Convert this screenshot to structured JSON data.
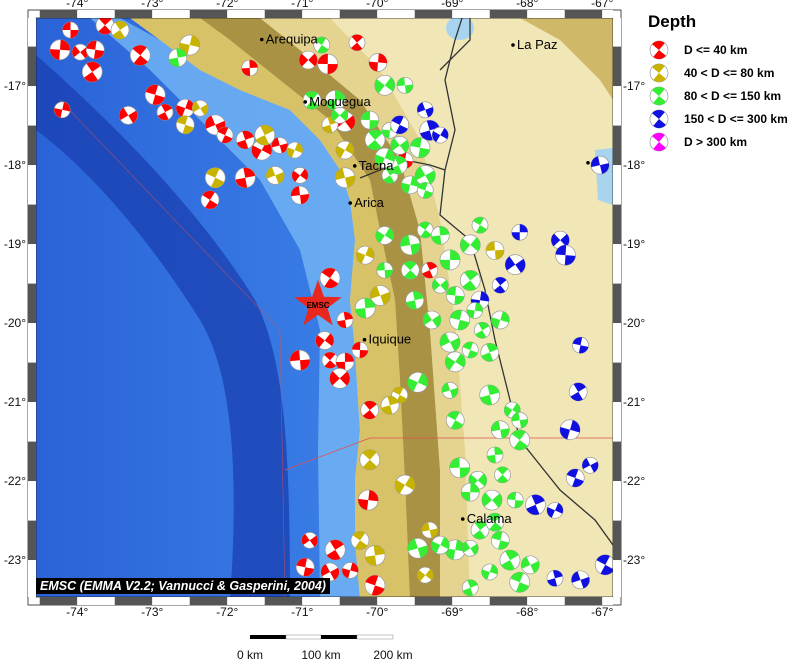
{
  "map": {
    "lon_ticks": [
      -74,
      -73,
      -72,
      -71,
      -70,
      -69,
      -68,
      -67
    ],
    "lat_ticks": [
      -17,
      -18,
      -19,
      -20,
      -21,
      -22,
      -23
    ],
    "lon_labels": [
      "-74°",
      "-73°",
      "-72°",
      "-71°",
      "-70°",
      "-69°",
      "-68°",
      "-67°"
    ],
    "lat_labels": [
      "-17°",
      "-18°",
      "-19°",
      "-20°",
      "-21°",
      "-22°",
      "-23°"
    ],
    "extent": {
      "lon": [
        -74.55,
        -66.85
      ],
      "lat": [
        -16.15,
        -23.45
      ]
    },
    "cities": [
      {
        "name": "Arequipa",
        "lon": -71.54,
        "lat": -16.41
      },
      {
        "name": "Moquegua",
        "lon": -70.96,
        "lat": -17.2
      },
      {
        "name": "Tacna",
        "lon": -70.3,
        "lat": -18.01
      },
      {
        "name": "Arica",
        "lon": -70.36,
        "lat": -18.48
      },
      {
        "name": "Iquique",
        "lon": -70.17,
        "lat": -20.21
      },
      {
        "name": "La Paz",
        "lon": -68.19,
        "lat": -16.48
      },
      {
        "name": "Calama",
        "lon": -68.86,
        "lat": -22.48
      }
    ],
    "unlabeled_city": {
      "lon": -67.19,
      "lat": -17.97
    },
    "epicenter": {
      "label": "EMSC",
      "lon": -70.79,
      "lat": -19.77,
      "color": "#e8281e"
    },
    "credit": "EMSC (EMMA V2.2; Vannucci & Gasperini, 2004)"
  },
  "scale_bar": {
    "labels": [
      "0 km",
      "100 km",
      "200 km"
    ]
  },
  "legend": {
    "title": "Depth",
    "items": [
      {
        "key": "d40",
        "label": "D <= 40 km",
        "color": "#ff0000"
      },
      {
        "key": "d80",
        "label": "40 < D <= 80 km",
        "color": "#c8b400"
      },
      {
        "key": "d150",
        "label": "80 < D <= 150 km",
        "color": "#33ee33"
      },
      {
        "key": "d300",
        "label": "150 < D <= 300 km",
        "color": "#1010e0"
      },
      {
        "key": "d300p",
        "label": "D > 300 km",
        "color": "#ff00ff"
      }
    ]
  },
  "events": [
    [
      -74.09,
      -16.29,
      "d40"
    ],
    [
      -73.63,
      -16.23,
      "d40"
    ],
    [
      -74.23,
      -16.54,
      "d40"
    ],
    [
      -73.96,
      -16.57,
      "d40"
    ],
    [
      -73.76,
      -16.54,
      "d40"
    ],
    [
      -73.8,
      -16.82,
      "d40"
    ],
    [
      -74.2,
      -17.3,
      "d40"
    ],
    [
      -73.32,
      -17.37,
      "d40"
    ],
    [
      -72.96,
      -17.11,
      "d40"
    ],
    [
      -72.83,
      -17.33,
      "d40"
    ],
    [
      -72.56,
      -17.28,
      "d40"
    ],
    [
      -72.16,
      -17.49,
      "d40"
    ],
    [
      -72.03,
      -17.62,
      "d40"
    ],
    [
      -71.76,
      -17.68,
      "d40"
    ],
    [
      -71.54,
      -17.81,
      "d40"
    ],
    [
      -71.3,
      -17.75,
      "d40"
    ],
    [
      -72.23,
      -18.44,
      "d40"
    ],
    [
      -71.76,
      -18.16,
      "d40"
    ],
    [
      -71.03,
      -18.13,
      "d40"
    ],
    [
      -71.03,
      -18.38,
      "d40"
    ],
    [
      -73.16,
      -16.61,
      "d40"
    ],
    [
      -71.7,
      -16.77,
      "d40"
    ],
    [
      -70.92,
      -16.67,
      "d40"
    ],
    [
      -70.66,
      -16.72,
      "d40"
    ],
    [
      -70.27,
      -16.45,
      "d40"
    ],
    [
      -69.99,
      -16.7,
      "d40"
    ],
    [
      -70.43,
      -17.45,
      "d40"
    ],
    [
      -69.63,
      -17.94,
      "d40"
    ],
    [
      -73.43,
      -16.29,
      "d80"
    ],
    [
      -72.5,
      -16.48,
      "d80"
    ],
    [
      -72.36,
      -17.28,
      "d80"
    ],
    [
      -72.56,
      -17.49,
      "d80"
    ],
    [
      -71.5,
      -17.62,
      "d80"
    ],
    [
      -71.1,
      -17.81,
      "d80"
    ],
    [
      -71.36,
      -18.13,
      "d80"
    ],
    [
      -72.16,
      -18.16,
      "d80"
    ],
    [
      -70.63,
      -17.49,
      "d80"
    ],
    [
      -70.43,
      -17.81,
      "d80"
    ],
    [
      -70.43,
      -18.16,
      "d80"
    ],
    [
      -70.74,
      -16.48,
      "d150"
    ],
    [
      -72.66,
      -16.64,
      "d150"
    ],
    [
      -69.9,
      -16.99,
      "d150"
    ],
    [
      -69.63,
      -16.99,
      "d150"
    ],
    [
      -70.87,
      -17.18,
      "d150"
    ],
    [
      -70.56,
      -17.18,
      "d150"
    ],
    [
      -70.5,
      -17.37,
      "d150"
    ],
    [
      -70.1,
      -17.43,
      "d150"
    ],
    [
      -70.03,
      -17.68,
      "d150"
    ],
    [
      -69.83,
      -17.56,
      "d150"
    ],
    [
      -69.7,
      -17.75,
      "d150"
    ],
    [
      -69.43,
      -17.78,
      "d150"
    ],
    [
      -69.83,
      -18.13,
      "d150"
    ],
    [
      -69.56,
      -18.25,
      "d150"
    ],
    [
      -69.36,
      -18.13,
      "d150"
    ],
    [
      -69.36,
      -18.32,
      "d150"
    ],
    [
      -69.72,
      -18.0,
      "d150"
    ],
    [
      -69.9,
      -17.91,
      "d150"
    ],
    [
      -69.36,
      -17.3,
      "d300"
    ],
    [
      -69.7,
      -17.49,
      "d300"
    ],
    [
      -69.3,
      -17.56,
      "d300"
    ],
    [
      -69.16,
      -17.62,
      "d300"
    ],
    [
      -67.03,
      -18.0,
      "d300"
    ],
    [
      -70.63,
      -19.43,
      "d40"
    ],
    [
      -70.43,
      -19.96,
      "d40"
    ],
    [
      -70.7,
      -20.22,
      "d40"
    ],
    [
      -71.03,
      -20.47,
      "d40"
    ],
    [
      -70.63,
      -20.47,
      "d40"
    ],
    [
      -70.43,
      -20.49,
      "d40"
    ],
    [
      -70.5,
      -20.7,
      "d40"
    ],
    [
      -70.23,
      -20.34,
      "d40"
    ],
    [
      -70.1,
      -21.1,
      "d40"
    ],
    [
      -70.12,
      -22.24,
      "d40"
    ],
    [
      -70.9,
      -22.75,
      "d40"
    ],
    [
      -70.96,
      -23.09,
      "d40"
    ],
    [
      -70.56,
      -22.87,
      "d40"
    ],
    [
      -70.36,
      -23.13,
      "d40"
    ],
    [
      -70.63,
      -23.15,
      "d40"
    ],
    [
      -70.03,
      -23.32,
      "d40"
    ],
    [
      -69.3,
      -19.33,
      "d40"
    ],
    [
      -70.16,
      -19.14,
      "d80"
    ],
    [
      -69.96,
      -19.65,
      "d80"
    ],
    [
      -69.7,
      -20.91,
      "d80"
    ],
    [
      -69.83,
      -21.04,
      "d80"
    ],
    [
      -69.63,
      -22.05,
      "d80"
    ],
    [
      -69.3,
      -22.62,
      "d80"
    ],
    [
      -70.23,
      -22.75,
      "d80"
    ],
    [
      -70.03,
      -22.94,
      "d80"
    ],
    [
      -69.36,
      -23.19,
      "d80"
    ],
    [
      -68.43,
      -19.08,
      "d80"
    ],
    [
      -70.1,
      -21.73,
      "d80"
    ],
    [
      -68.1,
      -18.85,
      "d300"
    ],
    [
      -67.56,
      -18.95,
      "d300"
    ],
    [
      -67.49,
      -19.14,
      "d300"
    ],
    [
      -68.36,
      -19.52,
      "d300"
    ],
    [
      -68.63,
      -19.71,
      "d300"
    ],
    [
      -68.16,
      -19.26,
      "d300"
    ],
    [
      -67.29,
      -20.28,
      "d300"
    ],
    [
      -67.32,
      -20.87,
      "d300"
    ],
    [
      -67.43,
      -21.35,
      "d300"
    ],
    [
      -67.16,
      -21.8,
      "d300"
    ],
    [
      -67.36,
      -21.96,
      "d300"
    ],
    [
      -67.89,
      -22.3,
      "d300"
    ],
    [
      -67.63,
      -22.37,
      "d300"
    ],
    [
      -67.29,
      -23.25,
      "d300"
    ],
    [
      -66.96,
      -23.06,
      "d300"
    ],
    [
      -67.63,
      -23.23,
      "d300"
    ],
    [
      -69.9,
      -18.89,
      "d150"
    ],
    [
      -69.56,
      -19.01,
      "d150"
    ],
    [
      -69.36,
      -18.82,
      "d150"
    ],
    [
      -69.16,
      -18.89,
      "d150"
    ],
    [
      -68.76,
      -19.01,
      "d150"
    ],
    [
      -69.9,
      -19.33,
      "d150"
    ],
    [
      -69.56,
      -19.33,
      "d150"
    ],
    [
      -69.03,
      -19.2,
      "d150"
    ],
    [
      -69.16,
      -19.52,
      "d150"
    ],
    [
      -68.96,
      -19.65,
      "d150"
    ],
    [
      -68.76,
      -19.46,
      "d150"
    ],
    [
      -68.7,
      -19.84,
      "d150"
    ],
    [
      -69.27,
      -19.96,
      "d150"
    ],
    [
      -68.9,
      -19.96,
      "d150"
    ],
    [
      -68.6,
      -20.09,
      "d150"
    ],
    [
      -68.36,
      -19.96,
      "d150"
    ],
    [
      -69.03,
      -20.24,
      "d150"
    ],
    [
      -68.76,
      -20.34,
      "d150"
    ],
    [
      -68.5,
      -20.37,
      "d150"
    ],
    [
      -69.46,
      -20.75,
      "d150"
    ],
    [
      -69.03,
      -20.85,
      "d150"
    ],
    [
      -68.96,
      -21.23,
      "d150"
    ],
    [
      -68.5,
      -20.91,
      "d150"
    ],
    [
      -68.2,
      -21.1,
      "d150"
    ],
    [
      -68.36,
      -21.35,
      "d150"
    ],
    [
      -68.1,
      -21.48,
      "d150"
    ],
    [
      -68.43,
      -21.67,
      "d150"
    ],
    [
      -68.66,
      -21.99,
      "d150"
    ],
    [
      -68.9,
      -21.83,
      "d150"
    ],
    [
      -68.33,
      -21.92,
      "d150"
    ],
    [
      -68.76,
      -22.14,
      "d150"
    ],
    [
      -68.47,
      -22.24,
      "d150"
    ],
    [
      -68.16,
      -22.24,
      "d150"
    ],
    [
      -68.63,
      -22.62,
      "d150"
    ],
    [
      -68.96,
      -22.87,
      "d150"
    ],
    [
      -68.76,
      -22.85,
      "d150"
    ],
    [
      -68.36,
      -22.75,
      "d150"
    ],
    [
      -68.23,
      -23.0,
      "d150"
    ],
    [
      -68.5,
      -23.15,
      "d150"
    ],
    [
      -67.96,
      -23.06,
      "d150"
    ],
    [
      -68.1,
      -23.28,
      "d150"
    ],
    [
      -68.76,
      -23.35,
      "d150"
    ],
    [
      -69.16,
      -22.81,
      "d150"
    ],
    [
      -69.46,
      -22.85,
      "d150"
    ],
    [
      -68.63,
      -18.76,
      "d150"
    ],
    [
      -69.5,
      -19.71,
      "d150"
    ],
    [
      -68.96,
      -20.49,
      "d150"
    ],
    [
      -68.1,
      -21.23,
      "d150"
    ],
    [
      -68.43,
      -22.52,
      "d150"
    ],
    [
      -70.16,
      -19.81,
      "d150"
    ]
  ]
}
